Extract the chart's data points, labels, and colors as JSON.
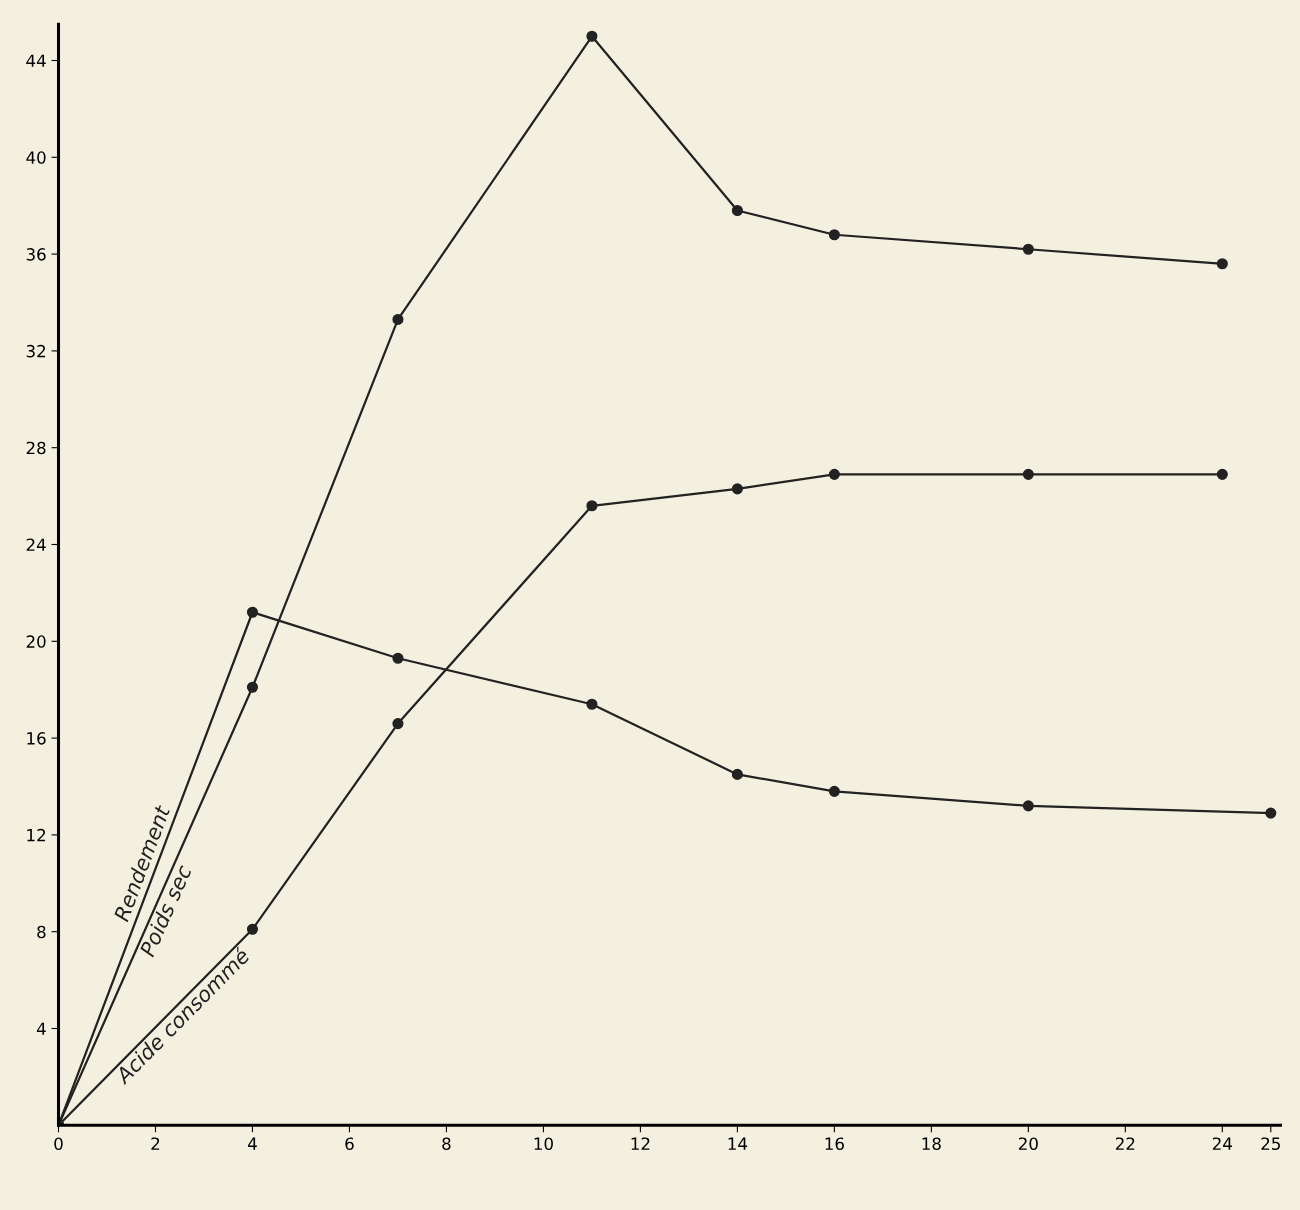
{
  "chart_data": {
    "type": "line",
    "xlim": [
      0,
      25.2
    ],
    "ylim": [
      0,
      45.5
    ],
    "xticks": [
      0,
      2,
      4,
      6,
      8,
      10,
      12,
      14,
      16,
      18,
      20,
      22,
      24,
      25
    ],
    "yticks": [
      4,
      8,
      12,
      16,
      20,
      24,
      28,
      32,
      36,
      40,
      44
    ],
    "grid": false,
    "legend": false,
    "marker": "circle",
    "line_style": "solid",
    "series": [
      {
        "name": "Rendement",
        "color": "#222222",
        "x": [
          0,
          4,
          7,
          11,
          14,
          16,
          20,
          25
        ],
        "values": [
          0,
          21.2,
          19.3,
          17.4,
          14.5,
          13.8,
          13.2,
          12.9
        ]
      },
      {
        "name": "Poids sec",
        "color": "#222222",
        "x": [
          0,
          4,
          7,
          11,
          14,
          16,
          20,
          24
        ],
        "values": [
          0,
          18.1,
          33.3,
          45.0,
          37.8,
          36.8,
          36.2,
          35.6
        ]
      },
      {
        "name": "Acide consommé",
        "color": "#222222",
        "x": [
          0,
          4,
          7,
          11,
          14,
          16,
          20,
          24
        ],
        "values": [
          0,
          8.1,
          16.6,
          25.6,
          26.3,
          26.9,
          26.9,
          26.9
        ]
      }
    ]
  }
}
